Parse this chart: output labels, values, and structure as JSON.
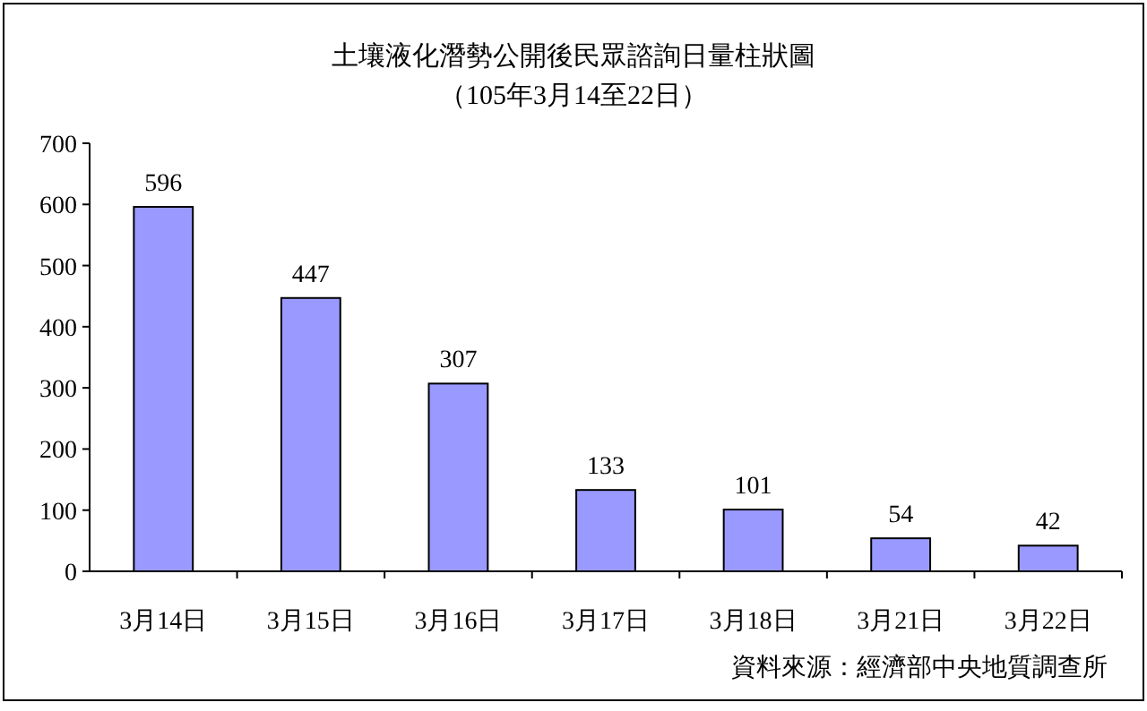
{
  "chart_data": {
    "type": "bar",
    "title": "土壤液化潛勢公開後民眾諮詢日量柱狀圖",
    "subtitle": "（105年3月14至22日）",
    "categories": [
      "3月14日",
      "3月15日",
      "3月16日",
      "3月17日",
      "3月18日",
      "3月21日",
      "3月22日"
    ],
    "values": [
      596,
      447,
      307,
      133,
      101,
      54,
      42
    ],
    "color": "#9999ff",
    "ylim": [
      0,
      700
    ],
    "yticks": [
      0,
      100,
      200,
      300,
      400,
      500,
      600,
      700
    ],
    "data_labels": true,
    "annotations": [
      "資料來源：經濟部中央地質調查所"
    ]
  }
}
